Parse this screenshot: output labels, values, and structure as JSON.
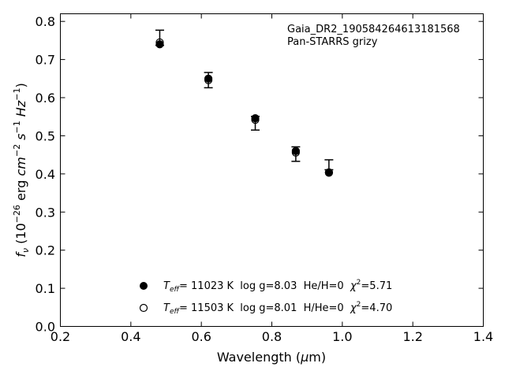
{
  "chart_data": {
    "type": "scatter",
    "annotation": {
      "lines": [
        "Gaia_DR2_190584264613181568",
        "Pan-STARRS grizy"
      ]
    },
    "xlabel": {
      "pre": "Wavelength (",
      "sym": "μ",
      "post": "m)"
    },
    "ylabel": {
      "f": "f",
      "sub": "ν",
      "unit_a": " (10",
      "exp_a": "−26",
      "unit_b": " erg ",
      "cm": "cm",
      "exp_cm": "−2",
      "s": " s",
      "exp_s": "−1",
      "hz": " Hz",
      "exp_hz": "−1",
      "close": ")"
    },
    "xlim": [
      0.2,
      1.4
    ],
    "ylim": [
      0.0,
      0.82
    ],
    "xticks": [
      0.2,
      0.4,
      0.6,
      0.8,
      1.0,
      1.2,
      1.4
    ],
    "xtick_labels": [
      "0.2",
      "0.4",
      "0.6",
      "0.8",
      "1.0",
      "1.2",
      "1.4"
    ],
    "yticks": [
      0.0,
      0.1,
      0.2,
      0.3,
      0.4,
      0.5,
      0.6,
      0.7,
      0.8
    ],
    "ytick_labels": [
      "0.0",
      "0.1",
      "0.2",
      "0.3",
      "0.4",
      "0.5",
      "0.6",
      "0.7",
      "0.8"
    ],
    "grid": false,
    "legend_position": "lower-center",
    "observed": {
      "x": [
        0.482,
        0.62,
        0.753,
        0.868,
        0.962
      ],
      "y": [
        0.757,
        0.646,
        0.533,
        0.452,
        0.424
      ],
      "yerr": [
        0.02,
        0.02,
        0.018,
        0.019,
        0.013
      ]
    },
    "series": [
      {
        "marker": "filled",
        "x": [
          0.482,
          0.62,
          0.753,
          0.868,
          0.962
        ],
        "y": [
          0.74,
          0.65,
          0.546,
          0.46,
          0.403
        ],
        "legend": {
          "t": "T",
          "t_sub": "eff",
          "text": "= 11023 K  log g=8.03  He/H=0  ",
          "chi": "χ",
          "chi_exp": "2",
          "chi_val": "=5.71"
        }
      },
      {
        "marker": "open",
        "x": [
          0.482,
          0.62,
          0.753,
          0.868,
          0.962
        ],
        "y": [
          0.745,
          0.646,
          0.542,
          0.456,
          0.404
        ],
        "legend": {
          "t": "T",
          "t_sub": "eff",
          "text": "= 11503 K  log g=8.01  H/He=0  ",
          "chi": "χ",
          "chi_exp": "2",
          "chi_val": "=4.70"
        }
      }
    ]
  }
}
